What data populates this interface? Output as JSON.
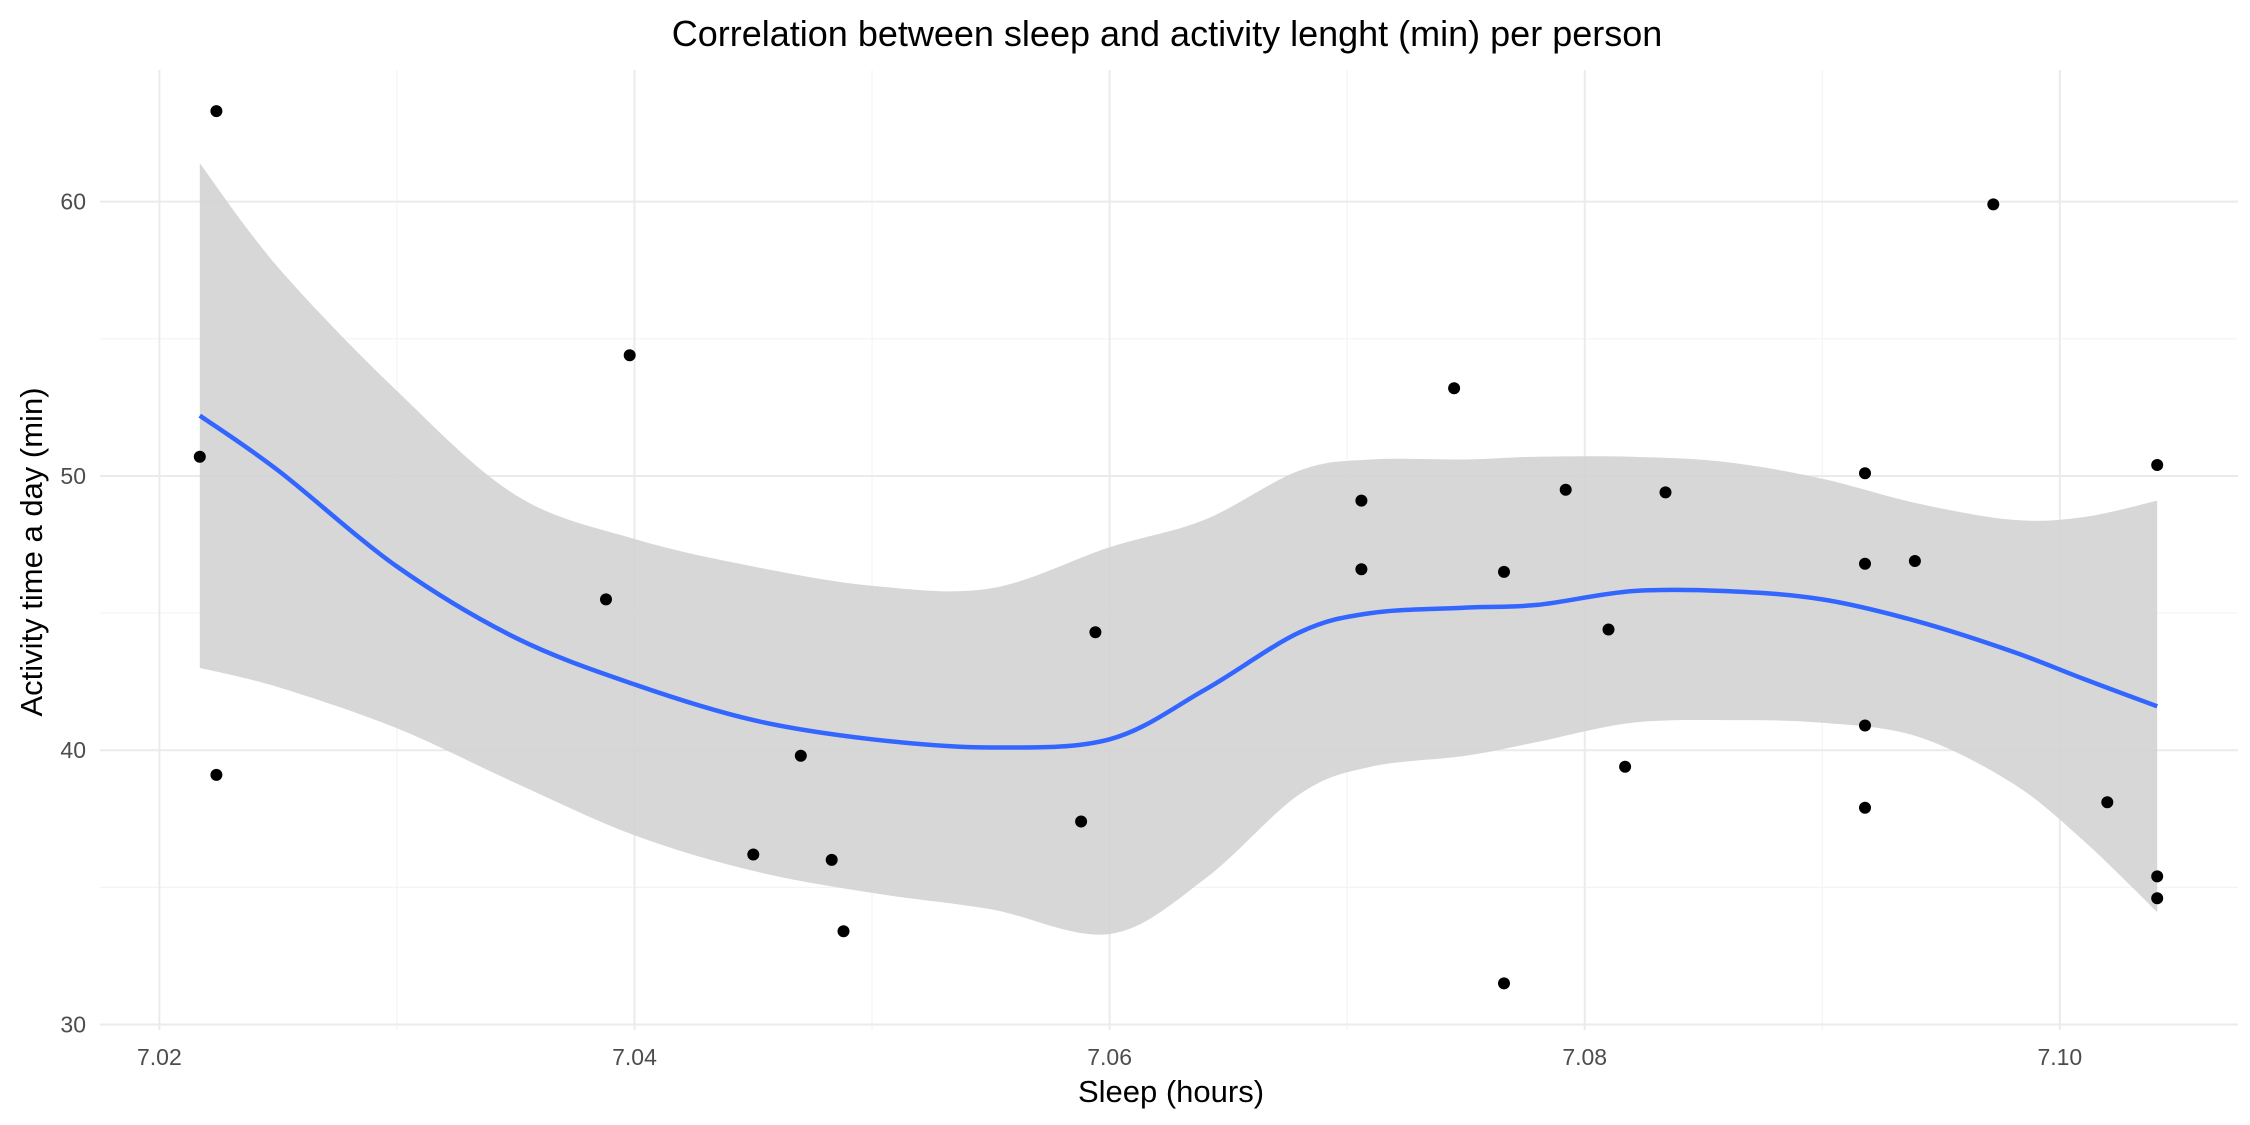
{
  "chart_data": {
    "type": "scatter",
    "title": "Correlation between sleep and activity lenght (min) per person",
    "xlabel": "Sleep (hours)",
    "ylabel": "Activity time a day (min)",
    "xlim": [
      7.0175,
      7.1075
    ],
    "ylim": [
      29.8,
      64.8
    ],
    "x_ticks": [
      7.02,
      7.04,
      7.06,
      7.08,
      7.1
    ],
    "x_tick_labels": [
      "7.02",
      "7.04",
      "7.06",
      "7.08",
      "7.10"
    ],
    "y_ticks": [
      30,
      40,
      50,
      60
    ],
    "y_tick_labels": [
      "30",
      "40",
      "50",
      "60"
    ],
    "grid": true,
    "colors": {
      "points": "#000000",
      "smooth_line": "#3366ff",
      "confidence_band": "#d3d3d3"
    },
    "points": [
      {
        "x": 7.0217,
        "y": 50.7
      },
      {
        "x": 7.0224,
        "y": 39.1
      },
      {
        "x": 7.0224,
        "y": 63.3
      },
      {
        "x": 7.0388,
        "y": 45.5
      },
      {
        "x": 7.0398,
        "y": 54.4
      },
      {
        "x": 7.045,
        "y": 36.2
      },
      {
        "x": 7.047,
        "y": 39.8
      },
      {
        "x": 7.0483,
        "y": 36.0
      },
      {
        "x": 7.0488,
        "y": 33.4
      },
      {
        "x": 7.0588,
        "y": 37.4
      },
      {
        "x": 7.0594,
        "y": 44.3
      },
      {
        "x": 7.0706,
        "y": 49.1
      },
      {
        "x": 7.0706,
        "y": 46.6
      },
      {
        "x": 7.0745,
        "y": 53.2
      },
      {
        "x": 7.0766,
        "y": 46.5
      },
      {
        "x": 7.0766,
        "y": 31.5
      },
      {
        "x": 7.0792,
        "y": 49.5
      },
      {
        "x": 7.081,
        "y": 44.4
      },
      {
        "x": 7.0817,
        "y": 39.4
      },
      {
        "x": 7.0834,
        "y": 49.4
      },
      {
        "x": 7.0918,
        "y": 50.1
      },
      {
        "x": 7.0918,
        "y": 46.8
      },
      {
        "x": 7.0918,
        "y": 40.9
      },
      {
        "x": 7.0918,
        "y": 37.9
      },
      {
        "x": 7.0939,
        "y": 46.9
      },
      {
        "x": 7.0972,
        "y": 59.9
      },
      {
        "x": 7.102,
        "y": 38.1
      },
      {
        "x": 7.1041,
        "y": 50.4
      },
      {
        "x": 7.1041,
        "y": 35.4
      },
      {
        "x": 7.1041,
        "y": 34.6
      }
    ],
    "smooth": {
      "method": "loess",
      "x": [
        7.0217,
        7.025,
        7.03,
        7.035,
        7.04,
        7.045,
        7.05,
        7.055,
        7.06,
        7.064,
        7.068,
        7.071,
        7.075,
        7.078,
        7.082,
        7.086,
        7.09,
        7.094,
        7.098,
        7.101,
        7.1041
      ],
      "y": [
        52.2,
        50.2,
        46.7,
        44.1,
        42.4,
        41.1,
        40.4,
        40.1,
        40.4,
        42.2,
        44.3,
        45.0,
        45.2,
        45.3,
        45.8,
        45.8,
        45.5,
        44.7,
        43.6,
        42.6,
        41.6
      ],
      "lower": [
        43.0,
        42.3,
        40.8,
        38.8,
        36.9,
        35.6,
        34.8,
        34.2,
        33.3,
        35.3,
        38.4,
        39.4,
        39.8,
        40.3,
        41.0,
        41.1,
        41.0,
        40.5,
        38.8,
        36.7,
        34.1
      ],
      "upper": [
        61.4,
        57.6,
        53.1,
        49.3,
        47.7,
        46.7,
        46.0,
        45.9,
        47.4,
        48.4,
        50.2,
        50.6,
        50.6,
        50.7,
        50.7,
        50.5,
        49.9,
        49.0,
        48.4,
        48.5,
        49.1
      ]
    }
  }
}
